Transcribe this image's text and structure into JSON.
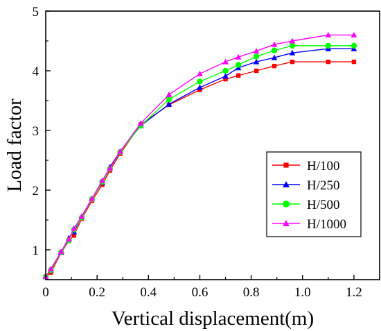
{
  "chart_data": {
    "type": "line",
    "xlabel": "Vertical displacement(m)",
    "ylabel": "Load factor",
    "xlim": [
      0,
      1.3
    ],
    "ylim": [
      0.5,
      5
    ],
    "x_ticks": [
      0,
      0.2,
      0.4,
      0.6,
      0.8,
      1.0,
      1.2
    ],
    "x_tick_labels": [
      "0",
      "0.2",
      "0.4",
      "0.6",
      "0.8",
      "1.0",
      "1.2"
    ],
    "y_ticks": [
      1,
      2,
      3,
      4,
      5
    ],
    "y_tick_labels": [
      "1",
      "2",
      "3",
      "4",
      "5"
    ],
    "grid": false,
    "legend_position": "right",
    "series": [
      {
        "name": "H/100",
        "color": "#ff0000",
        "marker": "square",
        "x": [
          0,
          0.02,
          0.06,
          0.09,
          0.11,
          0.14,
          0.18,
          0.22,
          0.25,
          0.29,
          0.37,
          0.48,
          0.6,
          0.7,
          0.75,
          0.82,
          0.89,
          0.96,
          1.1,
          1.2
        ],
        "y": [
          0.55,
          0.62,
          0.95,
          1.15,
          1.24,
          1.52,
          1.82,
          2.09,
          2.33,
          2.61,
          3.1,
          3.43,
          3.68,
          3.86,
          3.92,
          4.0,
          4.08,
          4.15,
          4.15,
          4.15
        ]
      },
      {
        "name": "H/250",
        "color": "#0000ff",
        "marker": "triangle",
        "x": [
          0,
          0.02,
          0.06,
          0.09,
          0.11,
          0.14,
          0.18,
          0.22,
          0.25,
          0.29,
          0.37,
          0.48,
          0.6,
          0.7,
          0.75,
          0.82,
          0.89,
          0.96,
          1.1,
          1.2
        ],
        "y": [
          0.55,
          0.66,
          0.96,
          1.2,
          1.3,
          1.56,
          1.86,
          2.13,
          2.39,
          2.65,
          3.08,
          3.44,
          3.72,
          3.91,
          4.05,
          4.15,
          4.22,
          4.3,
          4.37,
          4.37
        ]
      },
      {
        "name": "H/500",
        "color": "#00ff00",
        "marker": "circle",
        "x": [
          0,
          0.02,
          0.06,
          0.09,
          0.11,
          0.14,
          0.18,
          0.22,
          0.25,
          0.29,
          0.37,
          0.48,
          0.6,
          0.7,
          0.75,
          0.82,
          0.89,
          0.96,
          1.1,
          1.2
        ],
        "y": [
          0.55,
          0.66,
          0.96,
          1.16,
          1.34,
          1.54,
          1.85,
          2.14,
          2.36,
          2.64,
          3.08,
          3.52,
          3.82,
          4.0,
          4.1,
          4.24,
          4.34,
          4.42,
          4.42,
          4.42
        ]
      },
      {
        "name": "H/1000",
        "color": "#ff00ff",
        "marker": "triangle",
        "x": [
          0,
          0.02,
          0.06,
          0.09,
          0.11,
          0.14,
          0.18,
          0.22,
          0.25,
          0.29,
          0.37,
          0.48,
          0.6,
          0.7,
          0.75,
          0.82,
          0.89,
          0.96,
          1.1,
          1.2
        ],
        "y": [
          0.55,
          0.68,
          0.97,
          1.18,
          1.36,
          1.56,
          1.86,
          2.16,
          2.37,
          2.65,
          3.12,
          3.6,
          3.95,
          4.15,
          4.23,
          4.33,
          4.44,
          4.5,
          4.6,
          4.6
        ]
      }
    ]
  }
}
